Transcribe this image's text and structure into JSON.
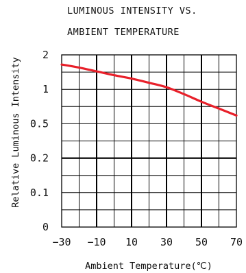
{
  "chart_data": {
    "type": "line",
    "title": [
      "LUMINOUS INTENSITY VS.",
      "AMBIENT TEMPERATURE"
    ],
    "xlabel": "Ambient Temperature(℃)",
    "ylabel": "Relative Luminous Intensity",
    "xlim": [
      -30,
      70
    ],
    "x_ticks": [
      -30,
      -10,
      10,
      30,
      50,
      70
    ],
    "x_tick_labels": [
      "−30",
      "−10",
      "10",
      "30",
      "50",
      "70"
    ],
    "y_ticks": [
      0,
      0.1,
      0.2,
      0.5,
      1,
      2
    ],
    "y_tick_labels": [
      "0",
      "0.1",
      "0.2",
      "0.5",
      "1",
      "2"
    ],
    "grid": true,
    "series": [
      {
        "color": "#e8202a",
        "x": [
          -30,
          -20,
          -10,
          0,
          10,
          20,
          30,
          40,
          50,
          60,
          70
        ],
        "y": [
          1.72,
          1.63,
          1.52,
          1.41,
          1.31,
          1.19,
          1.06,
          0.93,
          0.82,
          0.72,
          0.62
        ]
      }
    ]
  }
}
